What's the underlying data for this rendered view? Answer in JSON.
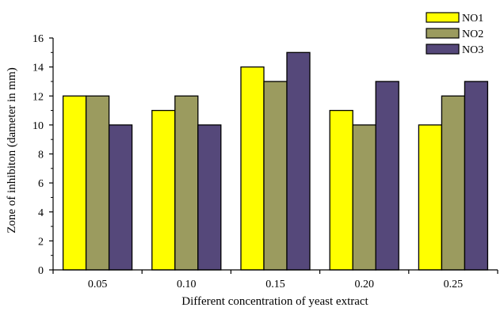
{
  "chart_data": {
    "type": "bar",
    "title": "",
    "xlabel": "Different concentration of yeast extract",
    "ylabel": "Zone of inhibiton (dameter in mm)",
    "categories": [
      "0.05",
      "0.10",
      "0.15",
      "0.20",
      "0.25"
    ],
    "ylim": [
      0,
      16
    ],
    "yticks": [
      "0",
      "2",
      "4",
      "6",
      "8",
      "10",
      "12",
      "14",
      "16"
    ],
    "grid": false,
    "legend_position": "top-right",
    "series": [
      {
        "name": "NO1",
        "color": "#ffff00",
        "values": [
          12,
          11,
          14,
          11,
          10
        ]
      },
      {
        "name": "NO2",
        "color": "#9b9b5f",
        "values": [
          12,
          12,
          13,
          10,
          12
        ]
      },
      {
        "name": "NO3",
        "color": "#55487a",
        "values": [
          10,
          10,
          15,
          13,
          13
        ]
      }
    ]
  }
}
